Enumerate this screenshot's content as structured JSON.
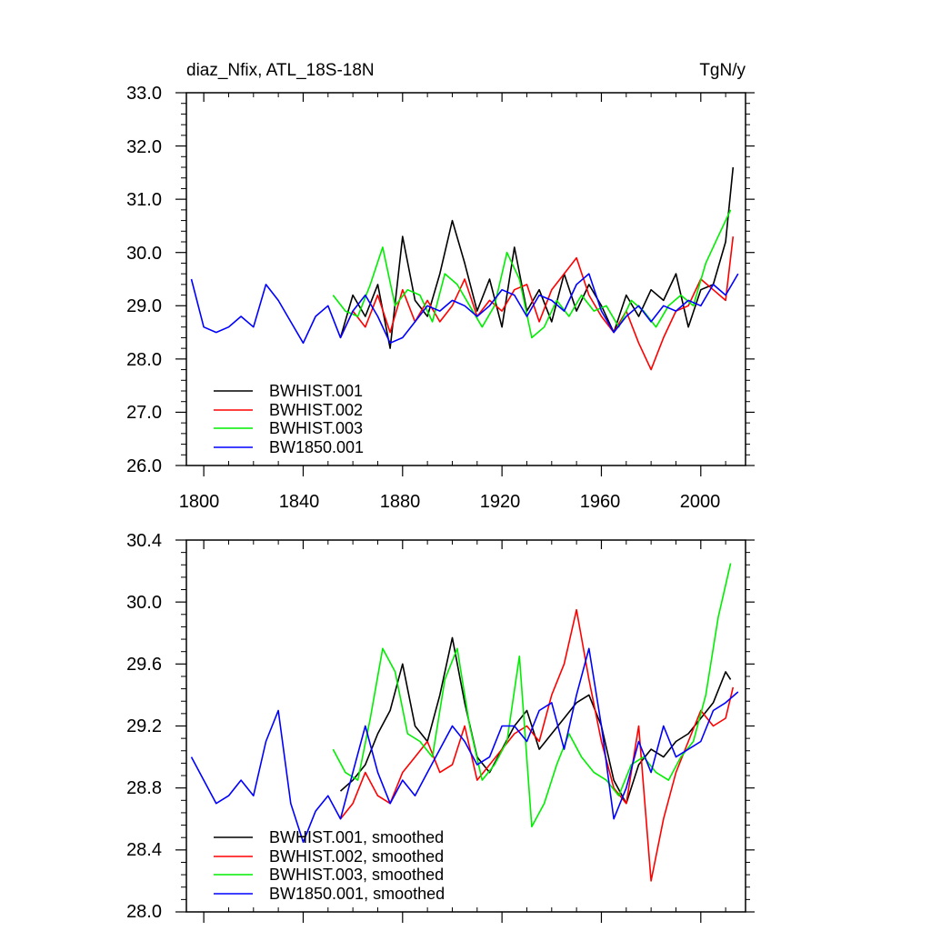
{
  "panels": [
    {
      "title_left": "diaz_Nfix, ATL_18S-18N",
      "title_right": "TgN/y",
      "y_tick_labels": [
        "33.0",
        "32.0",
        "31.0",
        "30.0",
        "29.0",
        "28.0",
        "27.0",
        "26.0"
      ],
      "x_tick_labels": [
        "1800",
        "1840",
        "1880",
        "1920",
        "1960",
        "2000"
      ],
      "legend": [
        "BWHIST.001",
        "BWHIST.002",
        "BWHIST.003",
        "BW1850.001"
      ]
    },
    {
      "y_tick_labels": [
        "30.4",
        "30.0",
        "29.6",
        "29.2",
        "28.8",
        "28.4",
        "28.0"
      ],
      "legend": [
        "BWHIST.001, smoothed",
        "BWHIST.002, smoothed",
        "BWHIST.003, smoothed",
        "BW1850.001, smoothed"
      ]
    }
  ],
  "chart_data": [
    {
      "type": "line",
      "title": "diaz_Nfix, ATL_18S-18N",
      "units": "TgN/y",
      "xlim": [
        1793,
        2018
      ],
      "ylim": [
        26.0,
        33.0
      ],
      "x_ticks": [
        1800,
        1840,
        1880,
        1920,
        1960,
        2000
      ],
      "y_ticks": [
        26.0,
        27.0,
        28.0,
        29.0,
        30.0,
        31.0,
        32.0,
        33.0
      ],
      "series": [
        {
          "name": "BWHIST.001",
          "color": "#000000",
          "x": [
            1855,
            1860,
            1865,
            1870,
            1875,
            1880,
            1885,
            1890,
            1895,
            1900,
            1905,
            1910,
            1915,
            1920,
            1925,
            1930,
            1935,
            1940,
            1945,
            1950,
            1955,
            1960,
            1965,
            1970,
            1975,
            1980,
            1985,
            1990,
            1995,
            2000,
            2005,
            2010,
            2013
          ],
          "values": [
            28.4,
            29.2,
            28.8,
            29.4,
            28.2,
            30.3,
            29.1,
            28.8,
            29.6,
            30.6,
            29.8,
            28.9,
            29.5,
            28.6,
            30.1,
            28.9,
            29.3,
            28.7,
            29.6,
            28.9,
            29.4,
            29.0,
            28.5,
            29.2,
            28.8,
            29.3,
            29.1,
            29.6,
            28.6,
            29.3,
            29.4,
            30.2,
            31.6
          ]
        },
        {
          "name": "BWHIST.002",
          "color": "#ff0000",
          "x": [
            1855,
            1860,
            1865,
            1870,
            1875,
            1880,
            1885,
            1890,
            1895,
            1900,
            1905,
            1910,
            1915,
            1920,
            1925,
            1930,
            1935,
            1940,
            1945,
            1950,
            1955,
            1960,
            1965,
            1970,
            1975,
            1980,
            1985,
            1990,
            1995,
            2000,
            2005,
            2010,
            2013
          ],
          "values": [
            28.4,
            28.9,
            28.6,
            29.2,
            28.5,
            29.3,
            28.7,
            29.1,
            28.7,
            29.0,
            29.5,
            28.8,
            29.1,
            28.9,
            29.3,
            29.4,
            28.7,
            29.3,
            29.6,
            29.9,
            29.2,
            28.8,
            28.5,
            28.9,
            28.3,
            27.8,
            28.4,
            28.9,
            29.0,
            29.5,
            29.3,
            29.1,
            30.3
          ]
        },
        {
          "name": "BWHIST.003",
          "color": "#00ee00",
          "x": [
            1852,
            1857,
            1862,
            1867,
            1872,
            1877,
            1882,
            1887,
            1892,
            1897,
            1902,
            1907,
            1912,
            1917,
            1922,
            1927,
            1932,
            1937,
            1942,
            1947,
            1952,
            1957,
            1962,
            1967,
            1972,
            1977,
            1982,
            1987,
            1992,
            1997,
            2002,
            2007,
            2012
          ],
          "values": [
            29.2,
            28.9,
            28.8,
            29.4,
            30.1,
            29.0,
            29.3,
            29.2,
            28.7,
            29.6,
            29.4,
            29.0,
            28.6,
            29.0,
            30.0,
            29.5,
            28.4,
            28.6,
            29.1,
            28.8,
            29.2,
            28.9,
            29.0,
            28.6,
            29.1,
            28.9,
            28.6,
            29.0,
            29.2,
            29.0,
            29.8,
            30.3,
            30.8
          ]
        },
        {
          "name": "BW1850.001",
          "color": "#0000ff",
          "x": [
            1795,
            1800,
            1805,
            1810,
            1815,
            1820,
            1825,
            1830,
            1835,
            1840,
            1845,
            1850,
            1855,
            1860,
            1865,
            1870,
            1875,
            1880,
            1885,
            1890,
            1895,
            1900,
            1905,
            1910,
            1915,
            1920,
            1925,
            1930,
            1935,
            1940,
            1945,
            1950,
            1955,
            1960,
            1965,
            1970,
            1975,
            1980,
            1985,
            1990,
            1995,
            2000,
            2005,
            2010,
            2015
          ],
          "values": [
            29.5,
            28.6,
            28.5,
            28.6,
            28.8,
            28.6,
            29.4,
            29.1,
            28.7,
            28.3,
            28.8,
            29.0,
            28.4,
            28.9,
            29.2,
            28.8,
            28.3,
            28.4,
            28.7,
            29.0,
            28.9,
            29.1,
            29.0,
            28.8,
            29.0,
            29.3,
            29.2,
            28.8,
            29.2,
            29.1,
            28.9,
            29.4,
            29.6,
            28.9,
            28.5,
            28.8,
            29.0,
            28.7,
            29.0,
            28.9,
            29.1,
            29.0,
            29.4,
            29.2,
            29.6
          ]
        }
      ]
    },
    {
      "type": "line",
      "title": "",
      "xlim": [
        1793,
        2018
      ],
      "ylim": [
        28.0,
        30.4
      ],
      "x_ticks": [
        1800,
        1840,
        1880,
        1920,
        1960,
        2000
      ],
      "y_ticks": [
        28.0,
        28.4,
        28.8,
        29.2,
        29.6,
        30.0,
        30.4
      ],
      "series": [
        {
          "name": "BWHIST.001, smoothed",
          "color": "#000000",
          "x": [
            1855,
            1860,
            1865,
            1870,
            1875,
            1880,
            1885,
            1890,
            1895,
            1900,
            1905,
            1910,
            1915,
            1920,
            1925,
            1930,
            1935,
            1940,
            1945,
            1950,
            1955,
            1960,
            1965,
            1970,
            1975,
            1980,
            1985,
            1990,
            1995,
            2000,
            2005,
            2010,
            2012
          ],
          "values": [
            28.78,
            28.85,
            28.95,
            29.15,
            29.3,
            29.6,
            29.2,
            29.1,
            29.4,
            29.77,
            29.35,
            29.0,
            28.9,
            29.05,
            29.2,
            29.3,
            29.05,
            29.15,
            29.25,
            29.35,
            29.4,
            29.2,
            28.85,
            28.7,
            28.95,
            29.05,
            29.0,
            29.1,
            29.15,
            29.25,
            29.35,
            29.55,
            29.5
          ]
        },
        {
          "name": "BWHIST.002, smoothed",
          "color": "#ff0000",
          "x": [
            1855,
            1860,
            1865,
            1870,
            1875,
            1880,
            1885,
            1890,
            1895,
            1900,
            1905,
            1910,
            1915,
            1920,
            1925,
            1930,
            1935,
            1940,
            1945,
            1950,
            1955,
            1960,
            1965,
            1970,
            1975,
            1980,
            1985,
            1990,
            1995,
            2000,
            2005,
            2010,
            2013
          ],
          "values": [
            28.6,
            28.7,
            28.9,
            28.75,
            28.7,
            28.9,
            29.0,
            29.1,
            28.9,
            28.95,
            29.2,
            28.85,
            28.95,
            29.05,
            29.15,
            29.2,
            29.1,
            29.4,
            29.6,
            29.95,
            29.5,
            29.1,
            28.8,
            28.7,
            29.2,
            28.2,
            28.6,
            28.9,
            29.1,
            29.3,
            29.2,
            29.25,
            29.45
          ]
        },
        {
          "name": "BWHIST.003, smoothed",
          "color": "#00ee00",
          "x": [
            1852,
            1857,
            1862,
            1867,
            1872,
            1877,
            1882,
            1887,
            1892,
            1897,
            1902,
            1907,
            1912,
            1917,
            1922,
            1927,
            1932,
            1937,
            1942,
            1947,
            1952,
            1957,
            1962,
            1967,
            1972,
            1977,
            1982,
            1987,
            1992,
            1997,
            2002,
            2007,
            2012
          ],
          "values": [
            29.05,
            28.9,
            28.85,
            29.25,
            29.7,
            29.55,
            29.15,
            29.1,
            29.0,
            29.5,
            29.7,
            29.2,
            28.85,
            28.95,
            29.1,
            29.65,
            28.55,
            28.7,
            28.95,
            29.15,
            29.0,
            28.9,
            28.85,
            28.75,
            28.95,
            29.0,
            28.9,
            28.85,
            29.0,
            29.1,
            29.4,
            29.9,
            30.25
          ]
        },
        {
          "name": "BW1850.001, smoothed",
          "color": "#0000ff",
          "x": [
            1795,
            1800,
            1805,
            1810,
            1815,
            1820,
            1825,
            1830,
            1835,
            1840,
            1845,
            1850,
            1855,
            1860,
            1865,
            1870,
            1875,
            1880,
            1885,
            1890,
            1895,
            1900,
            1905,
            1910,
            1915,
            1920,
            1925,
            1930,
            1935,
            1940,
            1945,
            1950,
            1955,
            1960,
            1965,
            1970,
            1975,
            1980,
            1985,
            1990,
            1995,
            2000,
            2005,
            2010,
            2015
          ],
          "values": [
            29.0,
            28.85,
            28.7,
            28.75,
            28.85,
            28.75,
            29.1,
            29.3,
            28.7,
            28.45,
            28.65,
            28.75,
            28.6,
            28.9,
            29.2,
            28.9,
            28.7,
            28.85,
            28.75,
            28.9,
            29.05,
            29.2,
            29.1,
            28.95,
            29.0,
            29.2,
            29.2,
            29.1,
            29.3,
            29.35,
            29.05,
            29.4,
            29.7,
            29.2,
            28.6,
            28.8,
            29.1,
            28.9,
            29.2,
            29.0,
            29.05,
            29.1,
            29.3,
            29.35,
            29.42
          ]
        }
      ]
    }
  ]
}
